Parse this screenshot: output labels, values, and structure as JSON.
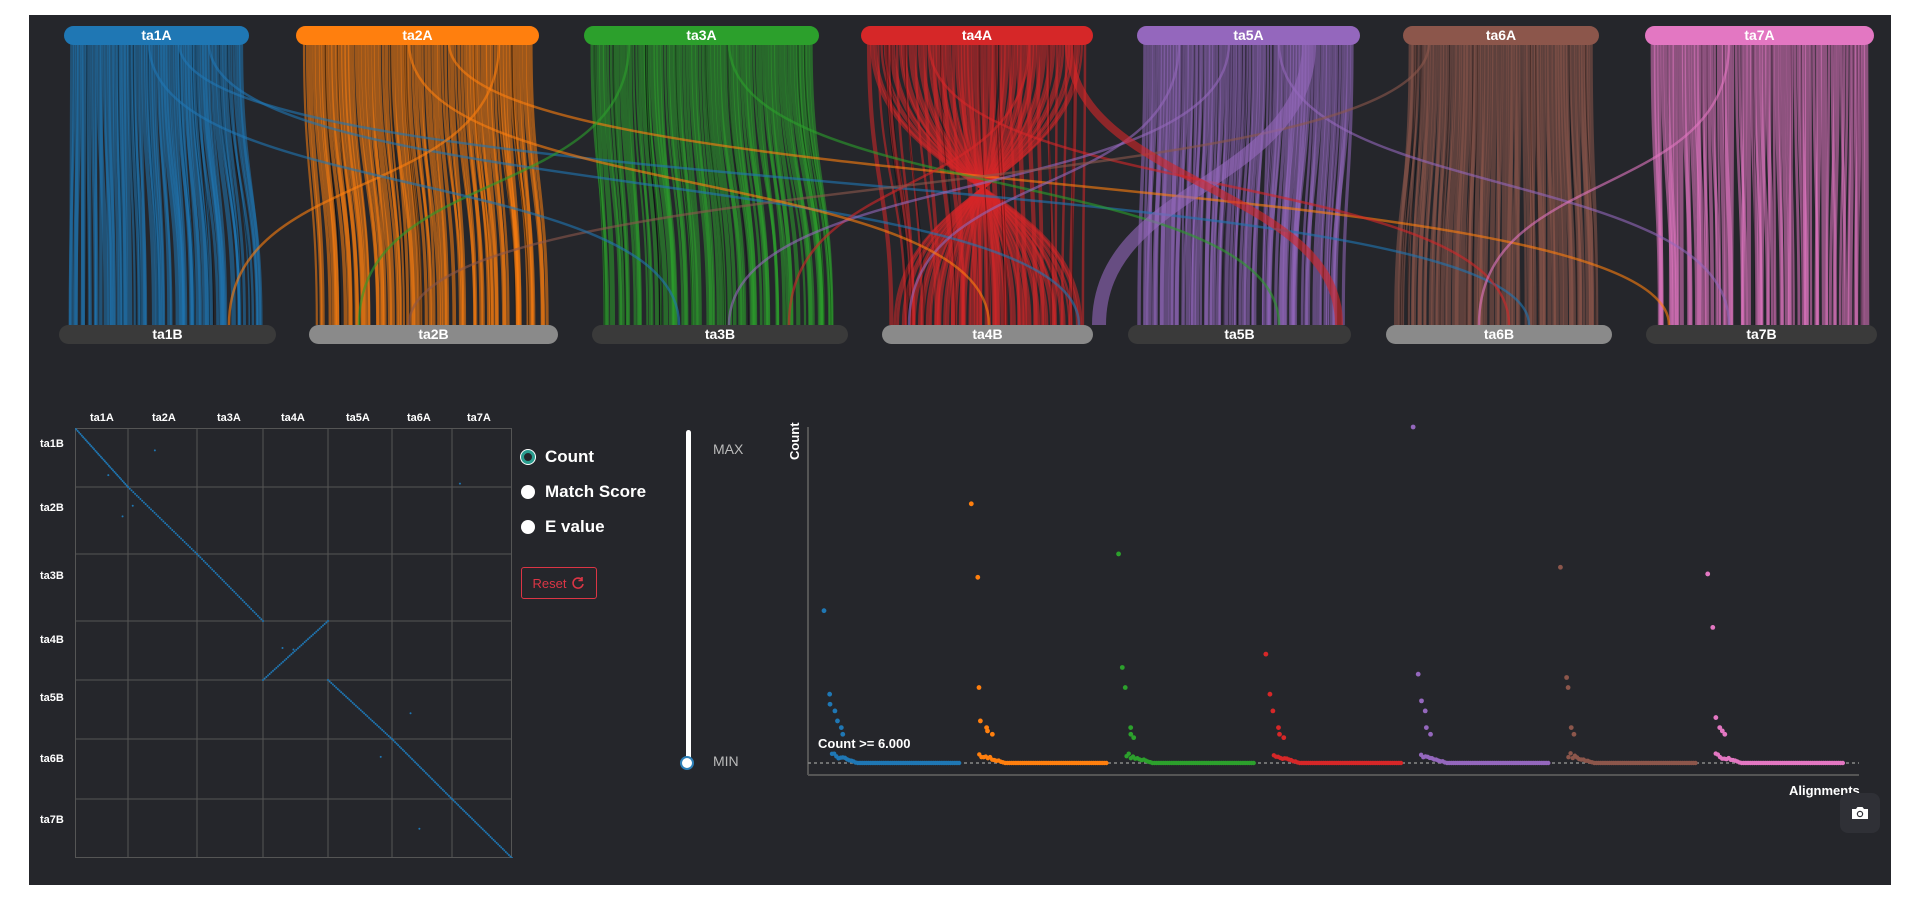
{
  "top_labels": [
    "ta1A",
    "ta2A",
    "ta3A",
    "ta4A",
    "ta5A",
    "ta6A",
    "ta7A"
  ],
  "bottom_labels": [
    "ta1B",
    "ta2B",
    "ta3B",
    "ta4B",
    "ta5B",
    "ta6B",
    "ta7B"
  ],
  "colors": {
    "ta1": "#1f77b4",
    "ta2": "#ff7f0e",
    "ta3": "#2ca02c",
    "ta4": "#d62728",
    "ta5": "#9467bd",
    "ta6": "#8c564b",
    "ta7": "#e377c2",
    "bottom_dark": "#3a3a3a",
    "bottom_light": "#8a8a8a",
    "background": "#25262b"
  },
  "dotplot": {
    "columns": [
      "ta1A",
      "ta2A",
      "ta3A",
      "ta4A",
      "ta5A",
      "ta6A",
      "ta7A"
    ],
    "rows": [
      "ta1B",
      "ta2B",
      "ta3B",
      "ta4B",
      "ta5B",
      "ta6B",
      "ta7B"
    ]
  },
  "options": {
    "count": "Count",
    "match_score": "Match Score",
    "e_value": "E value",
    "selected": "count"
  },
  "reset_label": "Reset",
  "slider": {
    "max_label": "MAX",
    "min_label": "MIN",
    "value": 0.0
  },
  "chart_data": {
    "type": "scatter",
    "xlabel": "Alignments",
    "ylabel": "Count",
    "threshold_label": "Count >= 6.000",
    "series": [
      {
        "name": "ta1",
        "peaks": [
          0.45,
          0.2,
          0.17,
          0.15,
          0.12,
          0.1,
          0.08
        ]
      },
      {
        "name": "ta2",
        "peaks": [
          0.77,
          0.55,
          0.22,
          0.12,
          0.1,
          0.09,
          0.08
        ]
      },
      {
        "name": "ta3",
        "peaks": [
          0.62,
          0.28,
          0.22,
          0.1,
          0.08,
          0.07
        ]
      },
      {
        "name": "ta4",
        "peaks": [
          0.32,
          0.2,
          0.15,
          0.1,
          0.08,
          0.07
        ]
      },
      {
        "name": "ta5",
        "peaks": [
          1.0,
          0.26,
          0.18,
          0.15,
          0.1,
          0.08
        ]
      },
      {
        "name": "ta6",
        "peaks": [
          0.58,
          0.25,
          0.22,
          0.1,
          0.08
        ]
      },
      {
        "name": "ta7",
        "peaks": [
          0.56,
          0.4,
          0.13,
          0.1,
          0.09,
          0.08
        ]
      }
    ]
  }
}
